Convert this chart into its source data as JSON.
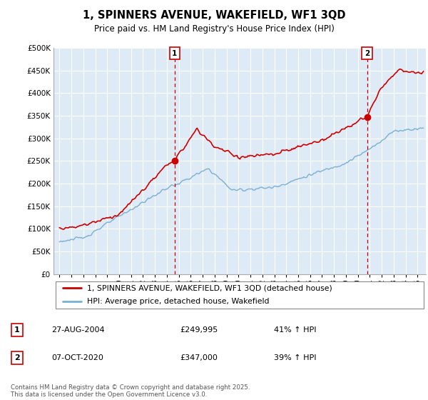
{
  "title": "1, SPINNERS AVENUE, WAKEFIELD, WF1 3QD",
  "subtitle": "Price paid vs. HM Land Registry's House Price Index (HPI)",
  "legend_line1": "1, SPINNERS AVENUE, WAKEFIELD, WF1 3QD (detached house)",
  "legend_line2": "HPI: Average price, detached house, Wakefield",
  "table_rows": [
    {
      "num": "1",
      "date": "27-AUG-2004",
      "price": "£249,995",
      "change": "41% ↑ HPI"
    },
    {
      "num": "2",
      "date": "07-OCT-2020",
      "price": "£347,000",
      "change": "39% ↑ HPI"
    }
  ],
  "footnote": "Contains HM Land Registry data © Crown copyright and database right 2025.\nThis data is licensed under the Open Government Licence v3.0.",
  "red_color": "#cc0000",
  "blue_color": "#7ab0d4",
  "marker1_year": 2004.65,
  "marker2_year": 2020.77,
  "marker1_price_red": 249995,
  "marker2_price_red": 347000,
  "ylim": [
    0,
    500000
  ],
  "yticks": [
    0,
    50000,
    100000,
    150000,
    200000,
    250000,
    300000,
    350000,
    400000,
    450000,
    500000
  ],
  "xlim_start": 1994.5,
  "xlim_end": 2025.7,
  "chart_bg": "#deeaf5",
  "fig_bg": "#ffffff",
  "grid_color": "#ffffff"
}
